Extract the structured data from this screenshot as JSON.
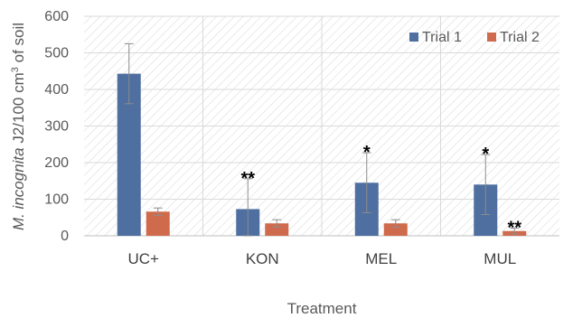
{
  "chart_data": {
    "type": "bar",
    "categories": [
      "UC+",
      "KON",
      "MEL",
      "MUL"
    ],
    "series": [
      {
        "name": "Trial 1",
        "color": "#4E6FA0",
        "values": [
          443,
          73,
          145,
          140
        ],
        "error": [
          82,
          83,
          82,
          82
        ],
        "significance": [
          "",
          "**",
          "*",
          "*"
        ]
      },
      {
        "name": "Trial 2",
        "color": "#D06A4C",
        "values": [
          66,
          34,
          34,
          13
        ],
        "error": [
          10,
          10,
          10,
          8
        ],
        "significance": [
          "",
          "",
          "",
          "**"
        ]
      }
    ],
    "ylim": [
      0,
      600
    ],
    "yticks": [
      0,
      100,
      200,
      300,
      400,
      500,
      600
    ],
    "ylabel_italic": "M. incognita",
    "ylabel_rest": " J2/100 cm",
    "ylabel_sup": "3",
    "ylabel_end": " of soil",
    "xlabel": "Treatment",
    "legend_position": "top-right",
    "grid": "diagonal hatch background with vertical separators"
  }
}
